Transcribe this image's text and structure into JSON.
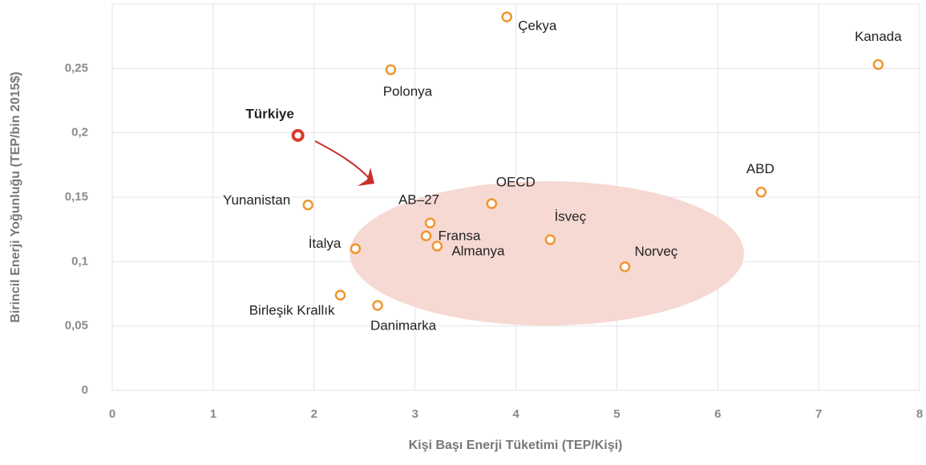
{
  "chart_data": {
    "type": "scatter",
    "x_label": "Kişi Başı Enerji Tüketimi (TEP/Kişi)",
    "y_label": "Birincil Enerji Yoğunluğu (TEP/bin 2015$)",
    "labels": [
      "Çekya",
      "Kanada",
      "Polonya",
      "Türkiye",
      "ABD",
      "OECD",
      "Yunanistan",
      "AB–27",
      "Fransa",
      "İsveç",
      "Almanya",
      "İtalya",
      "Norveç",
      "Birleşik Krallık",
      "Danimarka"
    ],
    "x": [
      3.91,
      7.59,
      2.76,
      1.84,
      6.43,
      3.76,
      1.94,
      3.15,
      3.11,
      4.34,
      3.22,
      2.41,
      5.08,
      2.26,
      2.63
    ],
    "values": [
      0.29,
      0.253,
      0.249,
      0.198,
      0.154,
      0.145,
      0.144,
      0.13,
      0.12,
      0.117,
      0.112,
      0.11,
      0.096,
      0.074,
      0.066
    ],
    "colors": [
      "#f0962e",
      "#f0962e",
      "#f0962e",
      "#d93a2b",
      "#f0962e",
      "#f0962e",
      "#f0962e",
      "#f0962e",
      "#f0962e",
      "#f0962e",
      "#f0962e",
      "#f0962e",
      "#f0962e",
      "#f0962e",
      "#f0962e"
    ],
    "xlim": [
      0,
      8
    ],
    "xticks": [
      0,
      1,
      2,
      3,
      4,
      5,
      6,
      7,
      8
    ],
    "ylim": [
      0,
      0.3
    ],
    "yticks": [
      0,
      {
        "value": 0.05,
        "label": "0,05"
      },
      {
        "value": 0.1,
        "label": "0,1"
      },
      {
        "value": 0.15,
        "label": "0,15"
      },
      {
        "value": 0.2,
        "label": "0,2"
      },
      {
        "value": 0.25,
        "label": "0,25"
      }
    ],
    "grid": true
  }
}
